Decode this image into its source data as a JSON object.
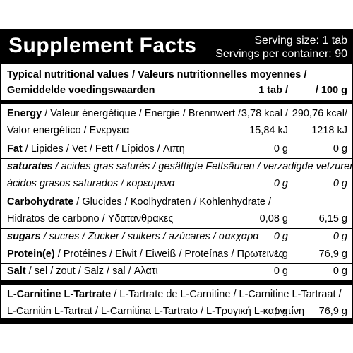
{
  "header": {
    "title": "Supplement Facts",
    "serving_size": "Serving size: 1 tab",
    "servings_per_container": "Servings per container: 90"
  },
  "column_header": {
    "line1": "Typical nutritional values  / Valeurs nutritionnelles moyennes /",
    "line2": "Gemiddelde voedingswaarden",
    "col1": "1 tab /",
    "col2": "/ 100 g"
  },
  "rows": {
    "energy_name": "Energy",
    "energy_rest": " / Valeur énergétique / Energie / Brennwert /",
    "energy_kcal_tab": "3,78 kcal /",
    "energy_kcal_100": "290,76 kcal/",
    "energy_line2": "Valor energético / Ενεργεια",
    "energy_kj_tab": "15,84 kJ",
    "energy_kj_100": "1218 kJ",
    "fat_name": "Fat",
    "fat_rest": " / Lipides / Vet / Fett / Lípidos / Λιπη",
    "fat_tab": "0 g",
    "fat_100": "0 g",
    "sat_name": "saturates",
    "sat_rest": " / acides gras saturés / gesättigte Fettsäuren / verzadigde vetzuren /",
    "sat_line2": "ácidos grasos saturados / κορεσμενα",
    "sat_tab": "0 g",
    "sat_100": "0 g",
    "carb_name": "Carbohydrate",
    "carb_rest": " / Glucides / Koolhydraten / Kohlenhydrate /",
    "carb_line2": "Hidratos de carbono / Υδατανθρακες",
    "carb_tab": "0,08 g",
    "carb_100": "6,15 g",
    "sugars_name": "sugars",
    "sugars_rest": " / sucres / Zucker / suikers / azúcares / σακχαρα",
    "sugars_tab": "0 g",
    "sugars_100": "0 g",
    "protein_name": "Protein(e)",
    "protein_rest": " / Protéines / Eiwit / Eiweiß / Proteínas /  Πρωτεινες",
    "protein_tab": "1 g",
    "protein_100": "76,9 g",
    "salt_name": "Salt",
    "salt_rest": " / sel / zout / Salz / sal / Αλατι",
    "salt_tab": "0 g",
    "salt_100": "0 g",
    "lcarn_name": "L-Carnitine L-Tartrate",
    "lcarn_rest": " / L-Tartrate de L-Carnitine / L-Carnitine L-Tartraat /",
    "lcarn_line2": "L-Carnitin L-Tartrat / L-Carnitina L-Tartrato / L-Τρυγική L-καρνιτίνη",
    "lcarn_tab": "1 g",
    "lcarn_100": "76,9 g"
  }
}
